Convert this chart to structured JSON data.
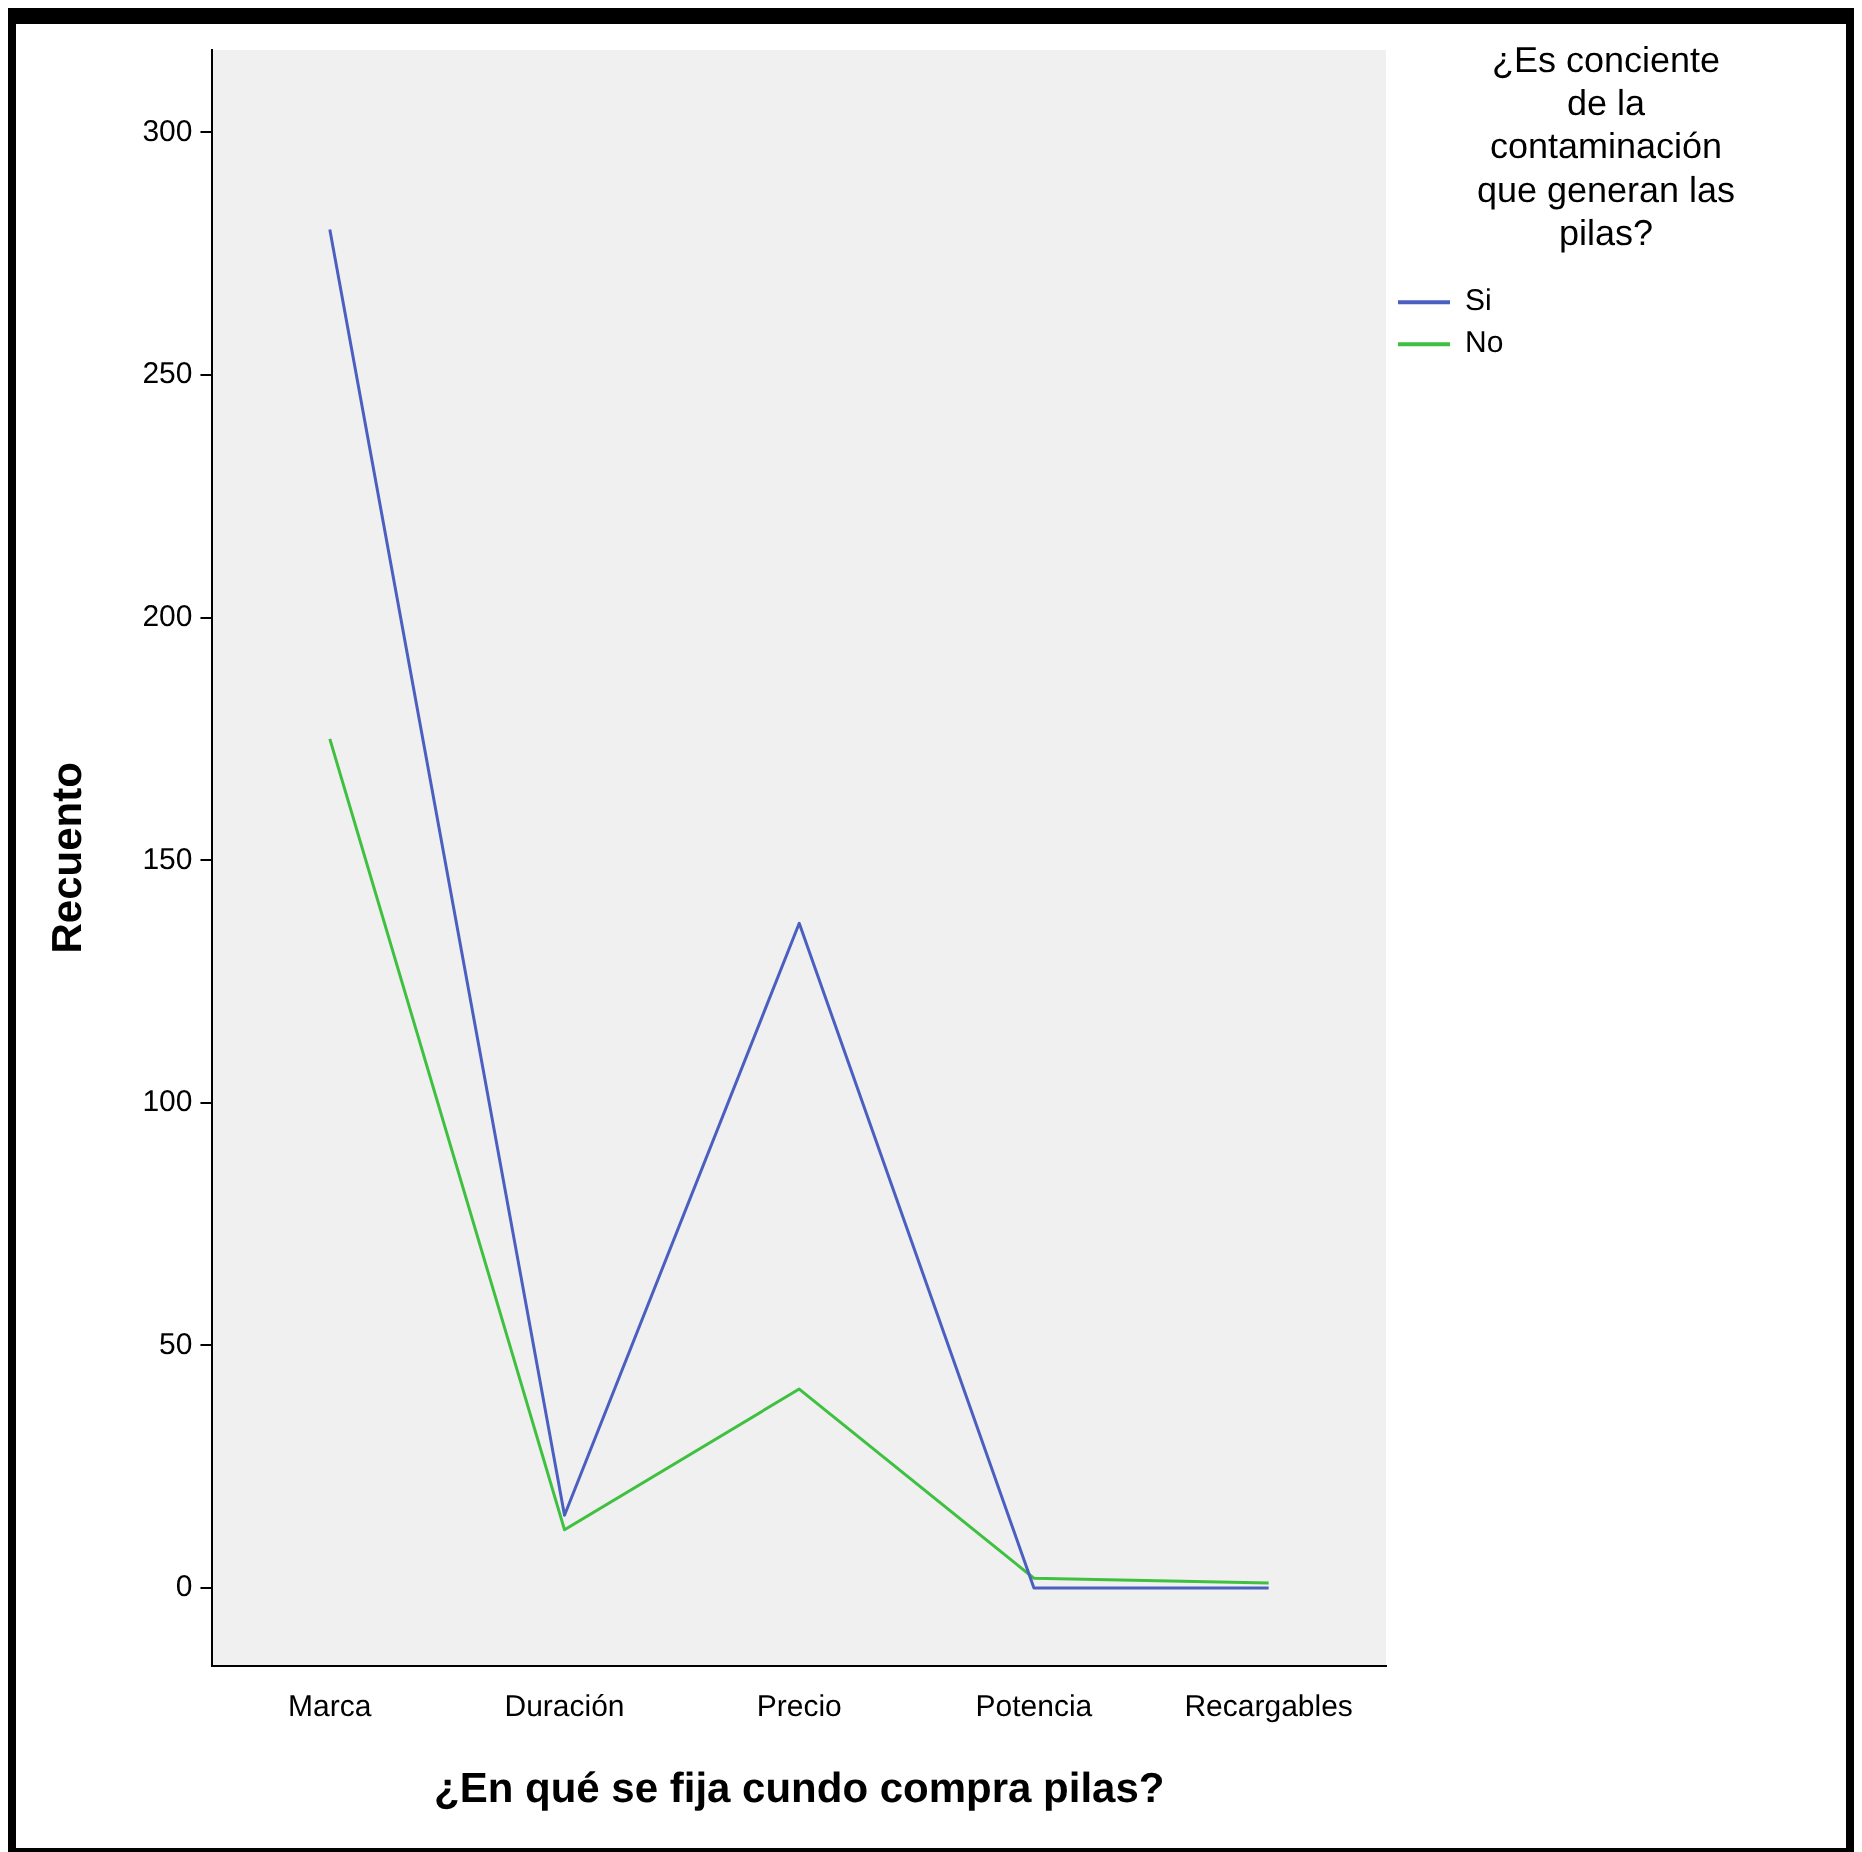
{
  "chart_data": {
    "type": "line",
    "xlabel": "¿En qué se fija cundo compra pilas?",
    "ylabel": "Recuento",
    "legend_title": "¿Es conciente de la contaminación que generan las pilas?",
    "categories": [
      "Marca",
      "Duración",
      "Precio",
      "Potencia",
      "Recargables"
    ],
    "series": [
      {
        "name": "Si",
        "color": "#4b5fc0",
        "values": [
          280,
          15,
          137,
          0,
          0
        ]
      },
      {
        "name": "No",
        "color": "#40c040",
        "values": [
          175,
          12,
          41,
          2,
          1
        ]
      }
    ],
    "ylim": [
      -16,
      317
    ],
    "yticks": [
      0,
      50,
      100,
      150,
      200,
      250,
      300
    ],
    "grid": false,
    "legend": "top right",
    "marker": "none",
    "line_style": "solid"
  }
}
